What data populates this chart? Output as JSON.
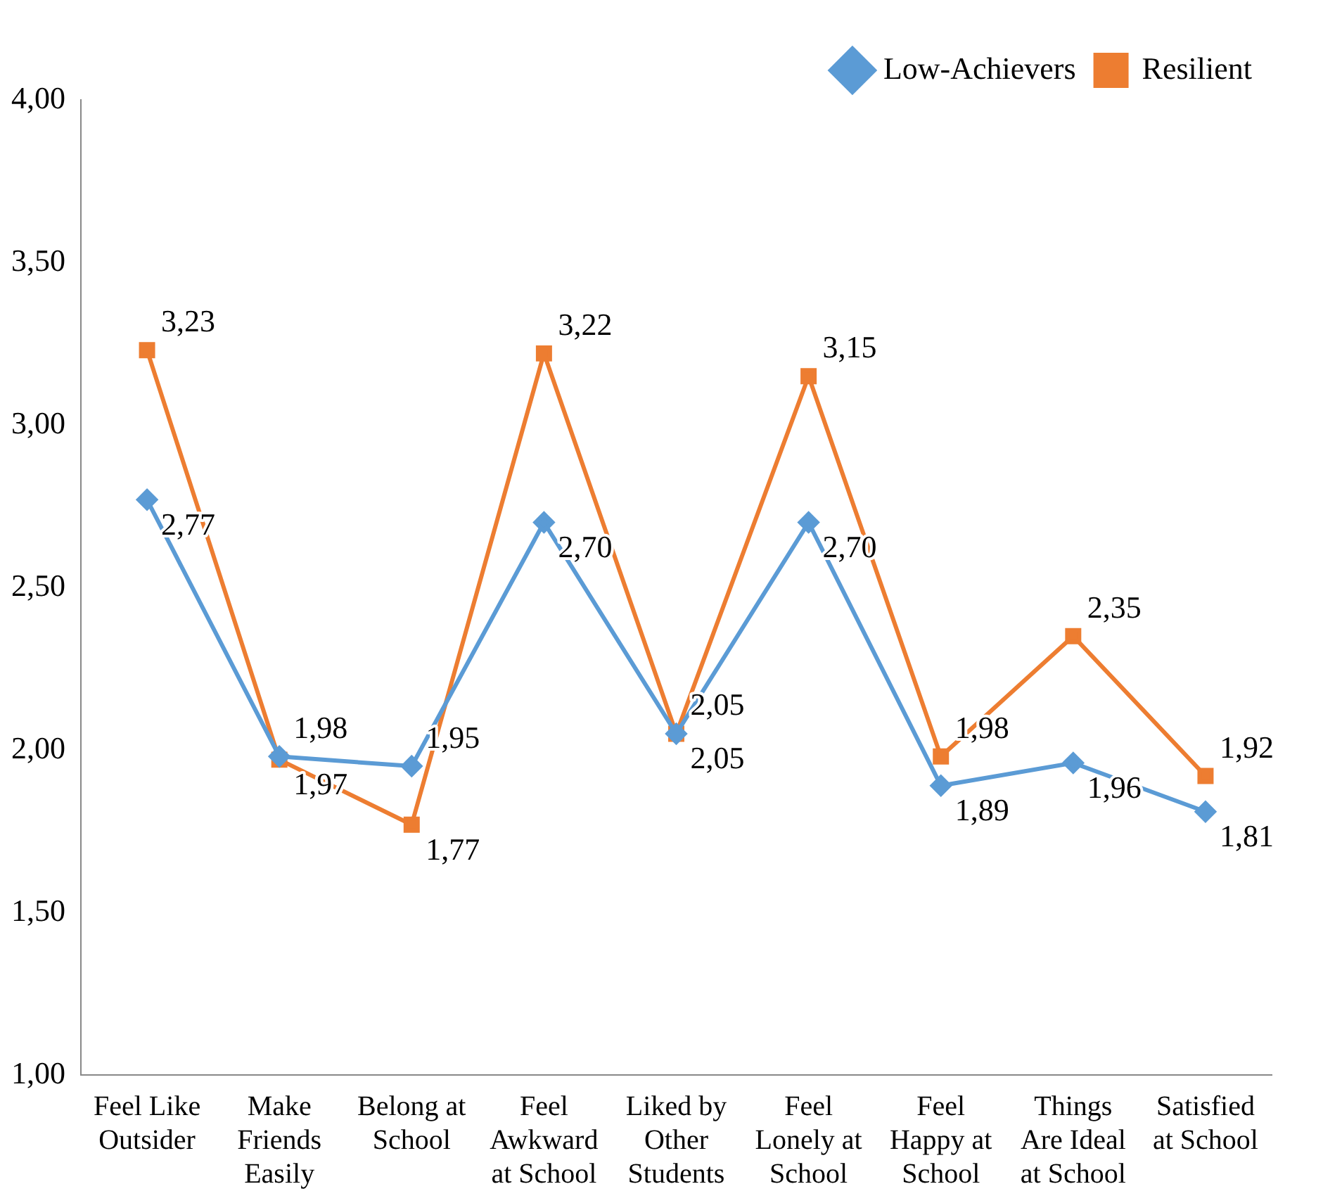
{
  "chart_data": {
    "type": "line",
    "categories": [
      "Feel Like Outsider",
      "Make Friends Easily",
      "Belong at School",
      "Feel Awkward at School",
      "Liked by Other Students",
      "Feel Lonely at School",
      "Feel Happy at School",
      "Things Are Ideal at School",
      "Satisfied at School"
    ],
    "series": [
      {
        "name": "Low-Achievers",
        "color": "#5b9bd5",
        "marker": "diamond",
        "values": [
          2.77,
          1.98,
          1.95,
          2.7,
          2.05,
          2.7,
          1.89,
          1.96,
          1.81
        ],
        "value_labels": [
          "2,77",
          "1,98",
          "1,95",
          "2,70",
          "2,05",
          "2,70",
          "1,89",
          "1,96",
          "1,81"
        ]
      },
      {
        "name": "Resilient",
        "color": "#ed7d31",
        "marker": "square",
        "values": [
          3.23,
          1.97,
          1.77,
          3.22,
          2.05,
          3.15,
          1.98,
          2.35,
          1.92
        ],
        "value_labels": [
          "3,23",
          "1,97",
          "1,77",
          "3,22",
          "2,05",
          "3,15",
          "1,98",
          "2,35",
          "1,92"
        ]
      }
    ],
    "ylim": [
      1,
      4
    ],
    "yticks": [
      {
        "value": 1,
        "label": "1,00"
      },
      {
        "value": 1.5,
        "label": "1,50"
      },
      {
        "value": 2,
        "label": "2,00"
      },
      {
        "value": 2.5,
        "label": "2,50"
      },
      {
        "value": 3,
        "label": "3,00"
      },
      {
        "value": 3.5,
        "label": "3,50"
      },
      {
        "value": 4,
        "label": "4,00"
      }
    ],
    "grid": false,
    "legend": "top right"
  }
}
